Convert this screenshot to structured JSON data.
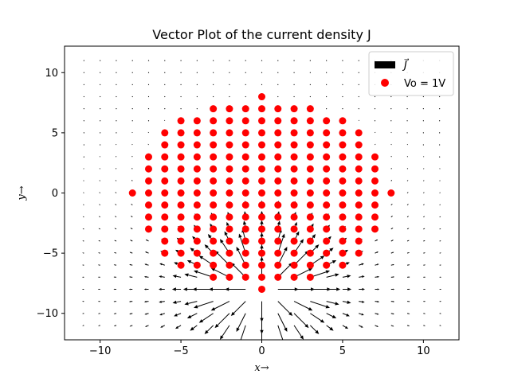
{
  "chart_data": {
    "type": "scatter",
    "title": "Vector Plot of the current density J",
    "xlabel": "x→",
    "ylabel": "y→",
    "xlim": [
      -12.2,
      12.2
    ],
    "ylim": [
      -12.2,
      12.2
    ],
    "xticks": [
      -10,
      -5,
      0,
      5,
      10
    ],
    "yticks": [
      -10,
      -5,
      0,
      5,
      10
    ],
    "xtick_labels": [
      "−10",
      "−5",
      "0",
      "5",
      "10"
    ],
    "ytick_labels": [
      "−10",
      "−5",
      "0",
      "5",
      "10"
    ],
    "grid": false,
    "legend_position": "top-right",
    "legend": [
      {
        "label": "J⃗",
        "marker": "arrow",
        "color": "#000000"
      },
      {
        "label": "Vo = 1V",
        "marker": "circle",
        "color": "#ff0000"
      }
    ],
    "scatter_series": {
      "name": "Vo = 1V",
      "color": "#ff0000",
      "rows": [
        {
          "y": 8,
          "x": [
            0
          ]
        },
        {
          "y": 7,
          "x": [
            -3,
            -2,
            -1,
            0,
            1,
            2,
            3
          ]
        },
        {
          "y": 6,
          "x": [
            -5,
            -4,
            -3,
            -2,
            -1,
            0,
            1,
            2,
            3,
            4,
            5
          ]
        },
        {
          "y": 5,
          "x": [
            -6,
            -5,
            -4,
            -3,
            -2,
            -1,
            0,
            1,
            2,
            3,
            4,
            5,
            6
          ]
        },
        {
          "y": 4,
          "x": [
            -6,
            -5,
            -4,
            -3,
            -2,
            -1,
            0,
            1,
            2,
            3,
            4,
            5,
            6
          ]
        },
        {
          "y": 3,
          "x": [
            -7,
            -6,
            -5,
            -4,
            -3,
            -2,
            -1,
            0,
            1,
            2,
            3,
            4,
            5,
            6,
            7
          ]
        },
        {
          "y": 2,
          "x": [
            -7,
            -6,
            -5,
            -4,
            -3,
            -2,
            -1,
            0,
            1,
            2,
            3,
            4,
            5,
            6,
            7
          ]
        },
        {
          "y": 1,
          "x": [
            -7,
            -6,
            -5,
            -4,
            -3,
            -2,
            -1,
            0,
            1,
            2,
            3,
            4,
            5,
            6,
            7
          ]
        },
        {
          "y": 0,
          "x": [
            -8,
            -7,
            -6,
            -5,
            -4,
            -3,
            -2,
            -1,
            0,
            1,
            2,
            3,
            4,
            5,
            6,
            7,
            8
          ]
        },
        {
          "y": -1,
          "x": [
            -7,
            -6,
            -5,
            -4,
            -3,
            -2,
            -1,
            0,
            1,
            2,
            3,
            4,
            5,
            6,
            7
          ]
        },
        {
          "y": -2,
          "x": [
            -7,
            -6,
            -5,
            -4,
            -3,
            -2,
            -1,
            0,
            1,
            2,
            3,
            4,
            5,
            6,
            7
          ]
        },
        {
          "y": -3,
          "x": [
            -7,
            -6,
            -5,
            -4,
            -3,
            -2,
            -1,
            0,
            1,
            2,
            3,
            4,
            5,
            6,
            7
          ]
        },
        {
          "y": -4,
          "x": [
            -6,
            -5,
            -4,
            -3,
            -2,
            -1,
            0,
            1,
            2,
            3,
            4,
            5,
            6
          ]
        },
        {
          "y": -5,
          "x": [
            -6,
            -5,
            -4,
            -3,
            -2,
            -1,
            0,
            1,
            2,
            3,
            4,
            5,
            6
          ]
        },
        {
          "y": -6,
          "x": [
            -5,
            -4,
            -3,
            -2,
            -1,
            0,
            1,
            2,
            3,
            4,
            5
          ]
        },
        {
          "y": -7,
          "x": [
            -3,
            -2,
            -1,
            0,
            1,
            2,
            3
          ]
        },
        {
          "y": -8,
          "x": [
            0
          ]
        }
      ]
    },
    "vector_field": {
      "name": "J⃗",
      "color": "#000000",
      "x_range": [
        -11,
        11
      ],
      "y_range": [
        -11,
        11
      ],
      "step": 1,
      "source_point": [
        0,
        -8
      ],
      "source_sign": 1
    }
  }
}
